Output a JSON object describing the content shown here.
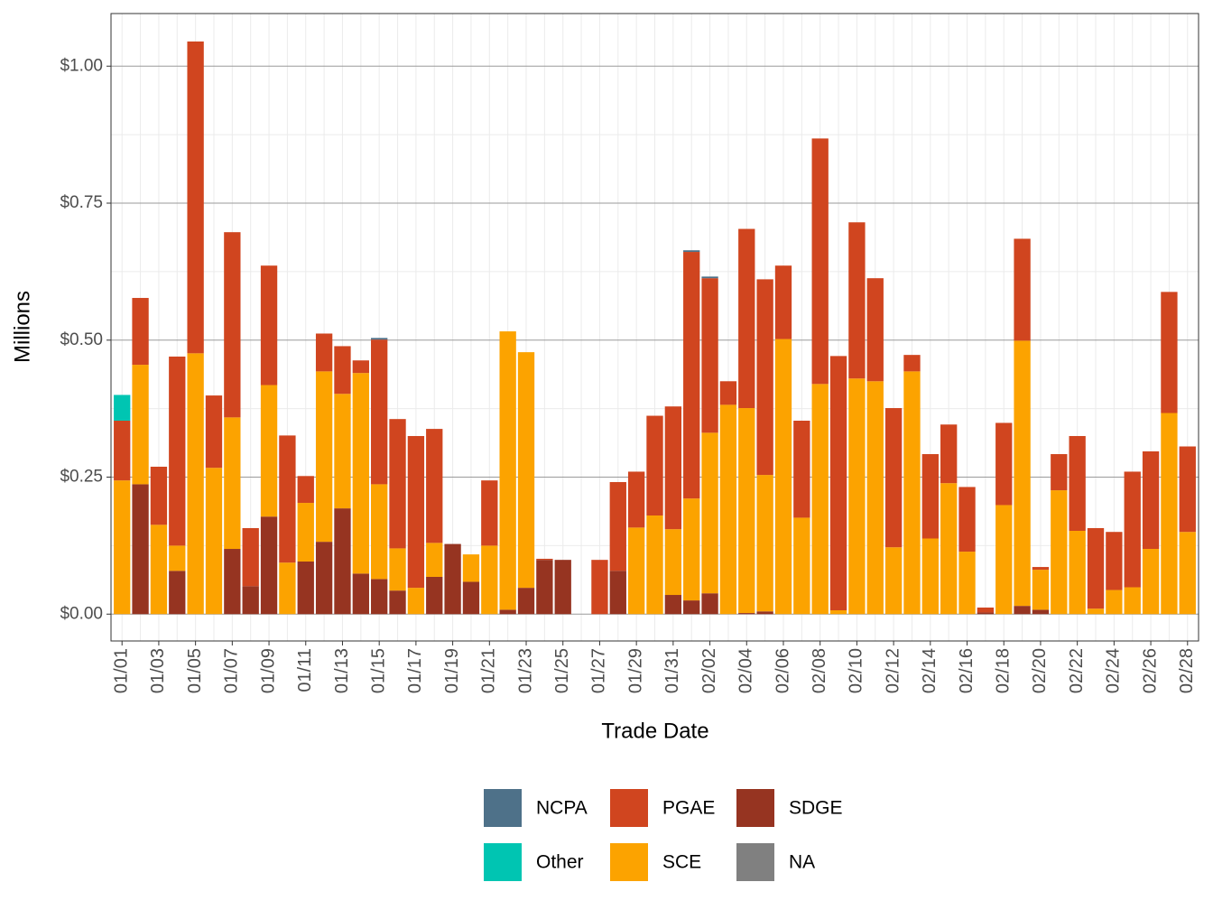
{
  "chart_data": {
    "type": "stacked-bar",
    "x_label": "Trade Date",
    "y_label": "Millions",
    "categories": [
      "01/01",
      null,
      "01/03",
      null,
      "01/05",
      null,
      "01/07",
      null,
      "01/09",
      null,
      "01/11",
      null,
      "01/13",
      null,
      "01/15",
      null,
      "01/17",
      null,
      "01/19",
      null,
      "01/21",
      null,
      "01/23",
      null,
      "01/25",
      null,
      "01/27",
      null,
      "01/29",
      null,
      "01/31",
      null,
      "02/02",
      null,
      "02/04",
      null,
      "02/06",
      null,
      "02/08",
      null,
      "02/10",
      null,
      "02/12",
      null,
      "02/14",
      null,
      "02/16",
      null,
      "02/18",
      null,
      "02/20",
      null,
      "02/22",
      null,
      "02/24",
      null,
      "02/26",
      null,
      "02/28"
    ],
    "series": [
      {
        "name": "NCPA",
        "color": "#4e7189",
        "values": [
          0,
          0,
          0,
          0,
          0,
          0,
          0,
          0,
          0,
          0,
          0,
          0,
          0,
          0,
          0.003,
          0,
          0,
          0,
          0,
          0,
          0,
          0,
          0,
          0,
          0,
          0,
          0,
          0,
          0,
          0,
          0,
          0.003,
          0.003,
          0,
          0,
          0,
          0,
          0,
          0,
          0,
          0,
          0,
          0,
          0,
          0,
          0,
          0,
          0,
          0,
          0,
          0,
          0,
          0,
          0,
          0,
          0,
          0,
          0,
          0
        ]
      },
      {
        "name": "Other",
        "color": "#00c5b2",
        "values": [
          0.047,
          0,
          0,
          0,
          0,
          0,
          0,
          0,
          0,
          0,
          0,
          0,
          0,
          0,
          0,
          0,
          0,
          0,
          0,
          0,
          0,
          0,
          0,
          0,
          0,
          0,
          0,
          0,
          0,
          0,
          0,
          0,
          0,
          0,
          0,
          0,
          0,
          0,
          0,
          0,
          0,
          0,
          0,
          0,
          0,
          0,
          0,
          0,
          0,
          0,
          0,
          0,
          0,
          0,
          0,
          0,
          0,
          0,
          0
        ]
      },
      {
        "name": "PGAE",
        "color": "#d0451f",
        "values": [
          0.109,
          0.122,
          0.106,
          0.345,
          0.569,
          0.132,
          0.338,
          0.106,
          0.218,
          0.232,
          0.049,
          0.069,
          0.087,
          0.023,
          0.264,
          0.236,
          0.277,
          0.208,
          0,
          0,
          0.119,
          0,
          0,
          0.002,
          0,
          0,
          0.099,
          0.162,
          0.102,
          0.182,
          0.224,
          0.45,
          0.282,
          0.043,
          0.327,
          0.357,
          0.134,
          0.177,
          0.448,
          0.464,
          0.285,
          0.188,
          0.254,
          0.03,
          0.154,
          0.107,
          0.118,
          0.009,
          0.15,
          0.186,
          0.005,
          0.066,
          0.173,
          0.147,
          0.106,
          0.211,
          0.178,
          0.221,
          0.156
        ]
      },
      {
        "name": "SCE",
        "color": "#fca300",
        "values": [
          0.244,
          0.218,
          0.163,
          0.046,
          0.476,
          0.267,
          0.24,
          0,
          0.24,
          0.094,
          0.107,
          0.311,
          0.209,
          0.366,
          0.173,
          0.077,
          0.048,
          0.062,
          0,
          0.05,
          0.125,
          0.508,
          0.43,
          0,
          0,
          0,
          0,
          0,
          0.158,
          0.18,
          0.12,
          0.186,
          0.293,
          0.382,
          0.374,
          0.249,
          0.502,
          0.176,
          0.42,
          0.007,
          0.43,
          0.425,
          0.122,
          0.443,
          0.138,
          0.239,
          0.114,
          0,
          0.199,
          0.484,
          0.073,
          0.226,
          0.152,
          0.01,
          0.044,
          0.049,
          0.119,
          0.367,
          0.15
        ]
      },
      {
        "name": "SDGE",
        "color": "#963421",
        "values": [
          0,
          0.237,
          0,
          0.079,
          0,
          0,
          0.119,
          0.051,
          0.178,
          0,
          0.096,
          0.132,
          0.193,
          0.074,
          0.064,
          0.043,
          0,
          0.068,
          0.128,
          0.059,
          0,
          0.008,
          0.048,
          0.099,
          0.099,
          0,
          0,
          0.079,
          0,
          0,
          0.035,
          0.025,
          0.038,
          0,
          0.002,
          0.005,
          0,
          0,
          0,
          0,
          0,
          0,
          0,
          0,
          0,
          0,
          0,
          0.003,
          0,
          0.015,
          0.008,
          0,
          0,
          0,
          0,
          0,
          0,
          0,
          0
        ]
      },
      {
        "name": "NA",
        "color": "#808080",
        "values": [
          0,
          0,
          0,
          0,
          0,
          0,
          0,
          0,
          0,
          0,
          0,
          0,
          0,
          0,
          0,
          0,
          0,
          0,
          0,
          0,
          0,
          0,
          0,
          0,
          0,
          0,
          0,
          0,
          0,
          0,
          0,
          0,
          0,
          0,
          0,
          0,
          0,
          0,
          0,
          0,
          0,
          0,
          0,
          0,
          0,
          0,
          0,
          0,
          0,
          0,
          0,
          0,
          0,
          0,
          0,
          0,
          0,
          0,
          0
        ]
      }
    ],
    "ylim": [
      -0.049,
      1.096
    ],
    "yticks": [
      {
        "value": 0,
        "label": "$0.00"
      },
      {
        "value": 0.25,
        "label": "$0.25"
      },
      {
        "value": 0.5,
        "label": "$0.50"
      },
      {
        "value": 0.75,
        "label": "$0.75"
      },
      {
        "value": 1,
        "label": "$1.00"
      }
    ],
    "grid": true,
    "legend": "bottom"
  }
}
